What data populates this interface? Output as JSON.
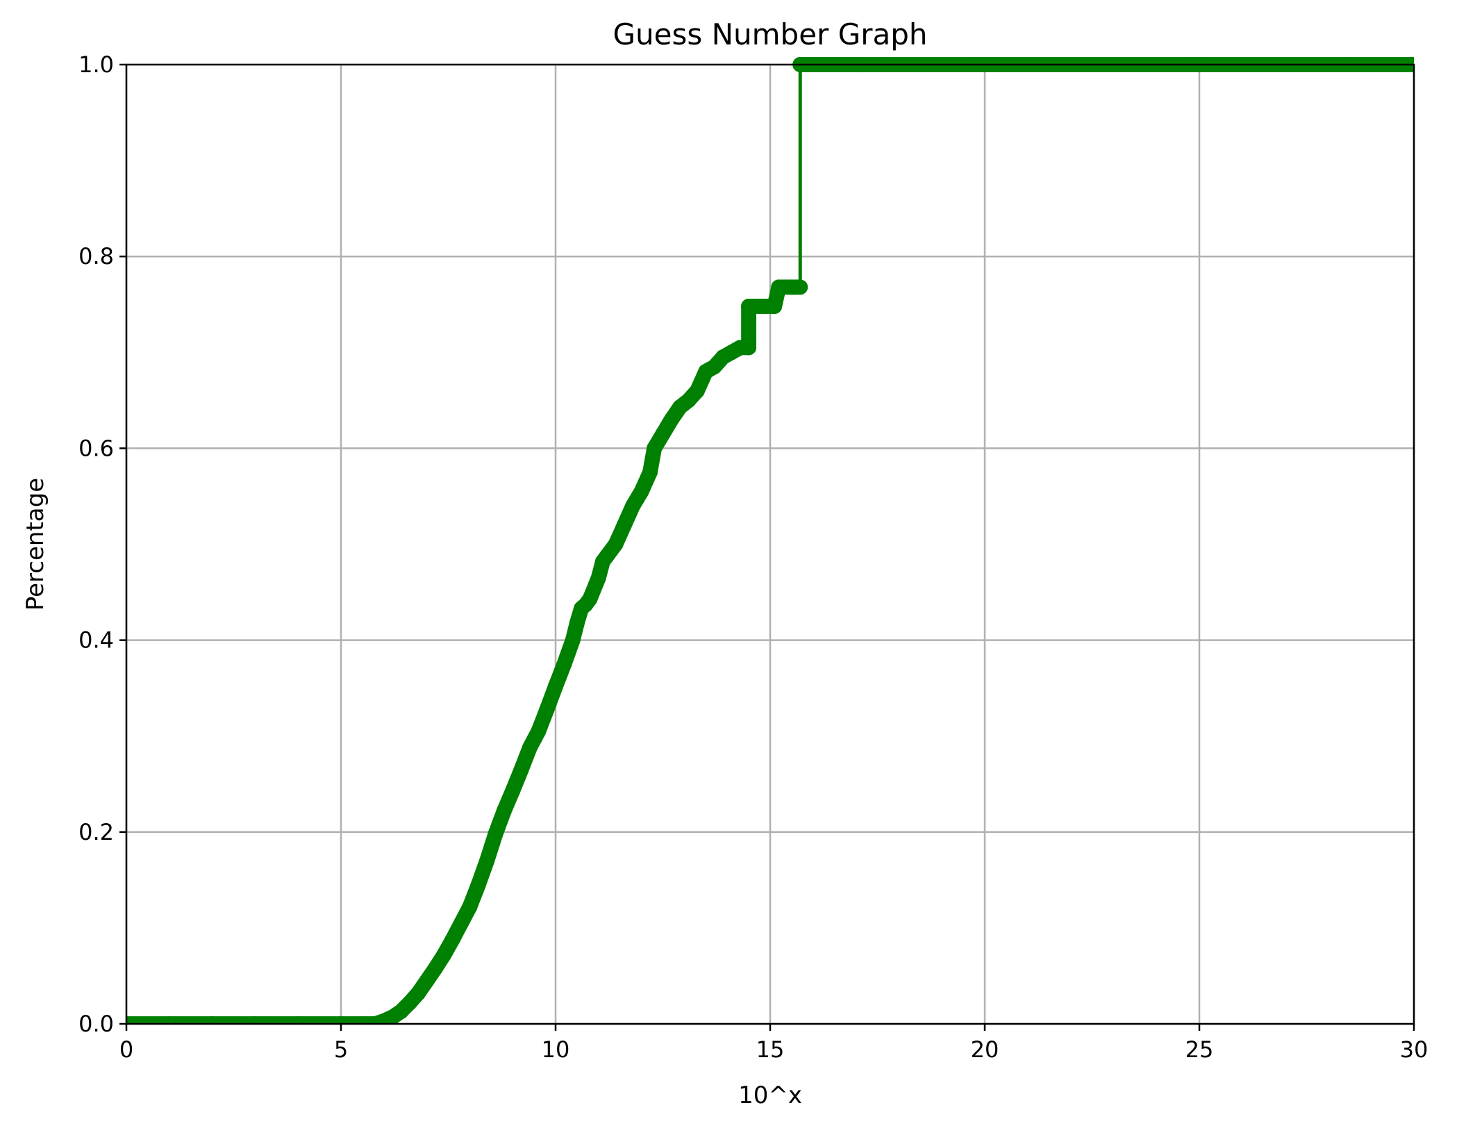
{
  "chart_data": {
    "type": "line",
    "title": "Guess Number Graph",
    "xlabel": "10^x",
    "ylabel": "Percentage",
    "xlim": [
      0,
      30
    ],
    "ylim": [
      0,
      1.0
    ],
    "xticks": [
      "0",
      "5",
      "10",
      "15",
      "20",
      "25",
      "30"
    ],
    "yticks": [
      "0.0",
      "0.2",
      "0.4",
      "0.6",
      "0.8",
      "1.0"
    ],
    "grid": true,
    "color": "#008000",
    "series": [
      {
        "marker": "circle",
        "x": [
          0,
          1,
          2,
          3,
          4,
          5,
          5.5,
          5.8,
          6.0,
          6.2,
          6.4,
          6.6,
          6.8,
          7.0,
          7.2,
          7.4,
          7.6,
          7.8,
          8.0,
          8.2,
          8.4,
          8.6,
          8.8,
          9.0,
          9.2,
          9.4,
          9.6,
          9.8,
          10.0,
          10.2,
          10.4,
          10.5,
          10.6,
          10.7,
          10.8,
          11.0,
          11.1,
          11.2,
          11.4,
          11.6,
          11.8,
          12.0,
          12.2,
          12.3,
          12.5,
          12.7,
          12.9,
          13.1,
          13.3,
          13.5,
          13.7,
          13.9,
          14.1,
          14.3,
          14.5,
          14.5,
          14.8,
          15.1,
          15.2,
          15.5,
          15.7,
          15.7,
          17,
          20,
          25,
          30
        ],
        "y": [
          0.0,
          0.0,
          0.0,
          0.0,
          0.0,
          0.0,
          0.0,
          0.0,
          0.003,
          0.007,
          0.013,
          0.022,
          0.032,
          0.045,
          0.058,
          0.072,
          0.088,
          0.105,
          0.122,
          0.145,
          0.17,
          0.198,
          0.222,
          0.243,
          0.265,
          0.288,
          0.305,
          0.328,
          0.352,
          0.375,
          0.4,
          0.418,
          0.433,
          0.437,
          0.443,
          0.465,
          0.482,
          0.488,
          0.5,
          0.52,
          0.54,
          0.555,
          0.575,
          0.6,
          0.615,
          0.63,
          0.643,
          0.65,
          0.66,
          0.68,
          0.685,
          0.695,
          0.7,
          0.705,
          0.705,
          0.748,
          0.748,
          0.748,
          0.768,
          0.768,
          0.768,
          1.0,
          1.0,
          1.0,
          1.0,
          1.0
        ]
      }
    ]
  }
}
